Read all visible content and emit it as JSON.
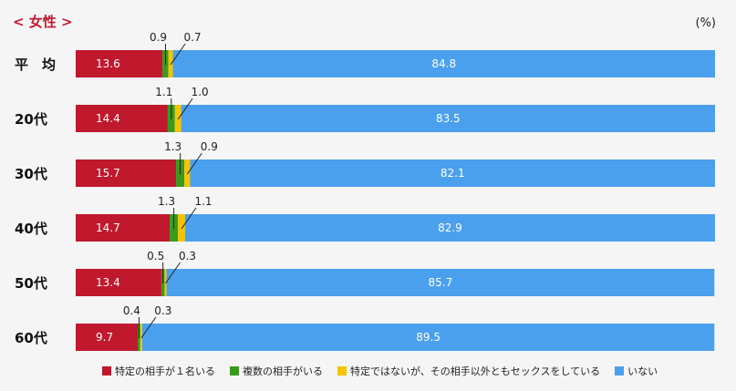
{
  "title": "< 女性 >",
  "unit": "(%)",
  "colors": {
    "specific_one": "#c0182d",
    "multiple": "#3a9a1e",
    "specific_plus_others": "#f3c400",
    "none": "#4ba0ee"
  },
  "chart_data": {
    "type": "bar",
    "orientation": "horizontal",
    "stacked": true,
    "categories": [
      "平　均",
      "20代",
      "30代",
      "40代",
      "50代",
      "60代"
    ],
    "series": [
      {
        "name": "特定の相手が１名いる",
        "values": [
          13.6,
          14.4,
          15.7,
          14.7,
          13.4,
          9.7
        ]
      },
      {
        "name": "複数の相手がいる",
        "values": [
          0.9,
          1.1,
          1.3,
          1.3,
          0.5,
          0.4
        ]
      },
      {
        "name": "特定ではないが、その相手以外ともセックスをしている",
        "values": [
          0.7,
          1.0,
          0.9,
          1.1,
          0.3,
          0.3
        ]
      },
      {
        "name": "いない",
        "values": [
          84.8,
          83.5,
          82.1,
          82.9,
          85.7,
          89.5
        ]
      }
    ],
    "labels": [
      [
        "13.6",
        "0.9",
        "0.7",
        "84.8"
      ],
      [
        "14.4",
        "1.1",
        "1.0",
        "83.5"
      ],
      [
        "15.7",
        "1.3",
        "0.9",
        "82.1"
      ],
      [
        "14.7",
        "1.3",
        "1.1",
        "82.9"
      ],
      [
        "13.4",
        "0.5",
        "0.3",
        "85.7"
      ],
      [
        "9.7",
        "0.4",
        "0.3",
        "89.5"
      ]
    ],
    "xlim": [
      0,
      100
    ]
  }
}
